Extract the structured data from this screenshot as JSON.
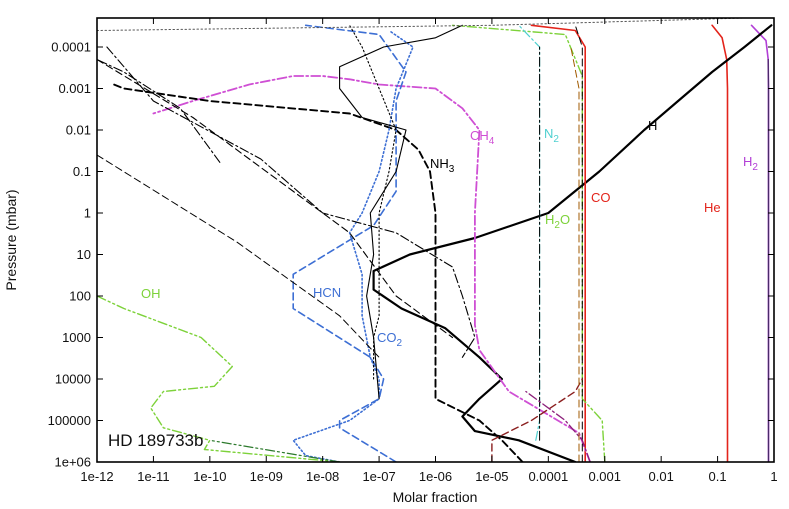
{
  "chart_data": {
    "type": "line",
    "xlabel": "Molar fraction",
    "ylabel": "Pressure (mbar)",
    "xscale": "log",
    "yscale": "log",
    "yinverted": true,
    "xlim": [
      1e-12,
      1
    ],
    "ylim": [
      1000000,
      2e-05
    ],
    "xtick_labels": [
      "1e-12",
      "1e-11",
      "1e-10",
      "1e-09",
      "1e-08",
      "1e-07",
      "1e-06",
      "1e-05",
      "0.0001",
      "0.001",
      "0.01",
      "0.1",
      "1"
    ],
    "ytick_labels": [
      "0.0001",
      "0.001",
      "0.01",
      "0.1",
      "1",
      "10",
      "100",
      "1000",
      "10000",
      "100000",
      "1e+06"
    ],
    "annotation": "HD 189733b",
    "series": [
      {
        "name": "H2",
        "color": "#b23fd6",
        "dash": "solid",
        "width": 1.6,
        "label_x": 0.82,
        "label_p": 0.15,
        "points": [
          [
            0.8,
            1000000
          ],
          [
            0.8,
            100
          ],
          [
            0.8,
            1
          ],
          [
            0.8,
            0.001
          ],
          [
            0.79,
            0.0002
          ],
          [
            0.72,
            7e-05
          ],
          [
            0.4,
            3e-05
          ]
        ]
      },
      {
        "name": "He",
        "color": "#e3241b",
        "dash": "solid",
        "width": 1.6,
        "label_x": 0.14,
        "label_p": 1.5,
        "points": [
          [
            0.15,
            1000000
          ],
          [
            0.15,
            100
          ],
          [
            0.15,
            1
          ],
          [
            0.15,
            0.001
          ],
          [
            0.145,
            0.0002
          ],
          [
            0.12,
            6e-05
          ],
          [
            0.08,
            3e-05
          ]
        ]
      },
      {
        "name": "H",
        "color": "#000000",
        "dash": "solid",
        "width": 2.2,
        "label_x": 0.007,
        "label_p": 0.008,
        "points": [
          [
            0.0003,
            1000000
          ],
          [
            3e-05,
            300000
          ],
          [
            5e-06,
            180000
          ],
          [
            3e-06,
            80000
          ],
          [
            6e-06,
            30000
          ],
          [
            1.5e-05,
            10000
          ],
          [
            6e-06,
            3000
          ],
          [
            1.5e-06,
            600
          ],
          [
            2.5e-07,
            200
          ],
          [
            8e-08,
            70
          ],
          [
            8e-08,
            25
          ],
          [
            3.5e-07,
            10
          ],
          [
            5e-06,
            4
          ],
          [
            0.0001,
            1
          ],
          [
            0.0008,
            0.1
          ],
          [
            0.005,
            0.01
          ],
          [
            0.02,
            0.002
          ],
          [
            0.08,
            0.0004
          ],
          [
            0.3,
            0.0001
          ],
          [
            0.9,
            3e-05
          ]
        ]
      },
      {
        "name": "CO",
        "color": "#e3241b",
        "dash": "solid",
        "width": 1.6,
        "label_x": 0.0006,
        "label_p": 0.9,
        "points": [
          [
            0.00045,
            1000000
          ],
          [
            0.00045,
            100
          ],
          [
            0.00045,
            1
          ],
          [
            0.00045,
            0.001
          ],
          [
            0.00045,
            0.0001
          ],
          [
            0.0003,
            4e-05
          ],
          [
            5e-05,
            3e-05
          ]
        ]
      },
      {
        "name": "H2O",
        "color": "#7dd23a",
        "dash": "dashdotdot",
        "width": 1.4,
        "label_x": 0.00015,
        "label_p": 3,
        "points": [
          [
            0.001,
            1000000
          ],
          [
            0.0009,
            100000
          ],
          [
            0.0004,
            30000
          ],
          [
            0.0004,
            10000
          ],
          [
            0.0004,
            100
          ],
          [
            0.0004,
            1
          ],
          [
            0.0004,
            0.0005
          ],
          [
            0.0002,
            5e-05
          ],
          [
            2e-06,
            3e-05
          ]
        ]
      },
      {
        "name": "N2",
        "color": "#4fd0d0",
        "dash": "dashdot",
        "width": 1.2,
        "label_x": 2.5e-05,
        "label_p": 0.02,
        "points": [
          [
            6e-05,
            300000
          ],
          [
            7e-05,
            100000
          ],
          [
            7e-05,
            1000
          ],
          [
            7e-05,
            10
          ],
          [
            7e-05,
            0.001
          ],
          [
            7e-05,
            0.0001
          ],
          [
            3e-05,
            3e-05
          ]
        ]
      },
      {
        "name": "CH4",
        "color": "#cf4fd4",
        "dash": "dashdot",
        "width": 1.8,
        "label_x": 4.5e-06,
        "label_p": 0.015,
        "points": [
          [
            0.00055,
            1000000
          ],
          [
            0.00035,
            200000
          ],
          [
            2e-05,
            20000
          ],
          [
            6e-06,
            2000
          ],
          [
            5e-06,
            500
          ],
          [
            5e-06,
            50
          ],
          [
            5e-06,
            1
          ],
          [
            6e-06,
            0.01
          ],
          [
            3e-06,
            0.003
          ],
          [
            1e-06,
            0.001
          ],
          [
            1e-07,
            0.0008
          ],
          [
            3e-08,
            0.0006
          ],
          [
            1e-08,
            0.0005
          ],
          [
            3e-09,
            0.0005
          ],
          [
            5e-10,
            0.0008
          ],
          [
            5e-11,
            0.002
          ],
          [
            1e-11,
            0.004
          ]
        ]
      },
      {
        "name": "NH3",
        "color": "#000000",
        "dash": "dash",
        "width": 1.9,
        "label_x": 8e-07,
        "label_p": 0.09,
        "points": [
          [
            3.5e-05,
            1000000
          ],
          [
            1.5e-05,
            300000
          ],
          [
            6e-06,
            100000
          ],
          [
            1e-06,
            30000
          ],
          [
            1e-06,
            10000
          ],
          [
            1e-06,
            100
          ],
          [
            1e-06,
            1
          ],
          [
            8e-07,
            0.1
          ],
          [
            5e-07,
            0.03
          ],
          [
            2e-07,
            0.01
          ],
          [
            3e-08,
            0.004
          ],
          [
            1e-10,
            0.002
          ],
          [
            3e-12,
            0.001
          ],
          [
            2e-12,
            0.0008
          ]
        ]
      },
      {
        "name": "HCN",
        "color": "#3d6fd4",
        "dash": "dash",
        "width": 1.6,
        "label_x": 3e-09,
        "label_p": 90,
        "points": [
          [
            2e-07,
            1000000
          ],
          [
            2e-08,
            150000
          ],
          [
            2e-08,
            100000
          ],
          [
            1e-07,
            30000
          ],
          [
            1.2e-07,
            10000
          ],
          [
            7e-08,
            3000
          ],
          [
            3e-09,
            200
          ],
          [
            3e-09,
            30
          ],
          [
            8e-08,
            2
          ],
          [
            2e-07,
            0.3
          ],
          [
            2e-07,
            0.02
          ],
          [
            2e-07,
            0.002
          ],
          [
            3e-07,
            0.0004
          ],
          [
            1e-07,
            5e-05
          ],
          [
            5e-09,
            3e-05
          ]
        ]
      },
      {
        "name": "CO2",
        "color": "#3d6fd4",
        "dash": "dot",
        "width": 1.6,
        "label_x": 5.5e-08,
        "label_p": 1000,
        "points": [
          [
            2e-08,
            1000000
          ],
          [
            5e-09,
            700000
          ],
          [
            3e-09,
            300000
          ],
          [
            3e-08,
            100000
          ],
          [
            1e-07,
            30000
          ],
          [
            1e-07,
            10000
          ],
          [
            7e-08,
            3000
          ],
          [
            5e-08,
            300
          ],
          [
            5e-08,
            30
          ],
          [
            3e-08,
            3
          ],
          [
            5e-08,
            1
          ],
          [
            1e-07,
            0.1
          ],
          [
            1.5e-07,
            0.01
          ],
          [
            2e-07,
            0.001
          ],
          [
            4e-07,
            0.0001
          ],
          [
            1.5e-07,
            4e-05
          ]
        ]
      },
      {
        "name": "OH",
        "color": "#7dd23a",
        "dash": "dashdotdot",
        "width": 1.4,
        "label_x": 3e-11,
        "label_p": 80,
        "points": [
          [
            2e-08,
            1000000
          ],
          [
            8e-11,
            500000
          ],
          [
            1e-10,
            300000
          ],
          [
            1.5e-11,
            150000
          ],
          [
            9e-12,
            50000
          ],
          [
            1.5e-11,
            20000
          ],
          [
            1.2e-10,
            15000
          ],
          [
            2.5e-10,
            5000
          ],
          [
            7e-11,
            1000
          ],
          [
            3e-12,
            200
          ],
          [
            1e-12,
            100
          ]
        ]
      },
      {
        "name": "",
        "color": "#000000",
        "dash": "solid",
        "width": 1.1,
        "points": [
          [
            1e-07,
            30000
          ],
          [
            8e-08,
            1000
          ],
          [
            6e-08,
            100
          ],
          [
            8e-08,
            10
          ],
          [
            7e-08,
            1
          ],
          [
            2e-07,
            0.1
          ],
          [
            3e-07,
            0.01
          ],
          [
            5e-08,
            0.005
          ],
          [
            2e-08,
            0.001
          ],
          [
            2e-08,
            0.0003
          ],
          [
            1.2e-07,
            0.0001
          ],
          [
            1e-06,
            6e-05
          ],
          [
            3e-06,
            3e-05
          ]
        ]
      },
      {
        "name": "",
        "color": "#000000",
        "dash": "dot",
        "width": 1.1,
        "points": [
          [
            8e-08,
            10000
          ],
          [
            8e-08,
            1000
          ],
          [
            1e-07,
            300
          ],
          [
            1e-07,
            30
          ],
          [
            1e-07,
            1
          ],
          [
            1.5e-07,
            0.1
          ],
          [
            2e-07,
            0.01
          ],
          [
            1e-07,
            0.001
          ],
          [
            5e-08,
            0.0001
          ],
          [
            3e-08,
            3e-05
          ]
        ]
      },
      {
        "name": "",
        "color": "#000000",
        "dash": "dashdot",
        "width": 1.1,
        "points": [
          [
            1.5e-10,
            0.06
          ],
          [
            3e-11,
            0.003
          ],
          [
            3e-12,
            0.0004
          ],
          [
            1e-12,
            0.0002
          ]
        ]
      },
      {
        "name": "",
        "color": "#000000",
        "dash": "dashdot",
        "width": 1.1,
        "points": [
          [
            1.5e-12,
            0.0001
          ],
          [
            1e-11,
            0.002
          ],
          [
            8e-10,
            0.05
          ],
          [
            1e-08,
            1
          ],
          [
            2e-07,
            3
          ],
          [
            2e-06,
            20
          ],
          [
            3e-06,
            100
          ],
          [
            5e-06,
            1000
          ],
          [
            3e-06,
            3000
          ]
        ]
      },
      {
        "name": "",
        "color": "#000000",
        "dash": "dash",
        "width": 1.1,
        "points": [
          [
            1e-12,
            0.0002
          ],
          [
            5e-11,
            0.005
          ],
          [
            5e-10,
            0.05
          ],
          [
            3e-08,
            3
          ],
          [
            2e-07,
            100
          ],
          [
            2e-06,
            1000
          ]
        ]
      },
      {
        "name": "",
        "color": "#000000",
        "dash": "dash",
        "width": 1.0,
        "points": [
          [
            1e-12,
            0.04
          ],
          [
            3e-10,
            5
          ],
          [
            2e-08,
            300
          ],
          [
            1e-07,
            3000
          ]
        ]
      },
      {
        "name": "",
        "color": "#000000",
        "dash": "dash",
        "width": 1.0,
        "points": [
          [
            0.0004,
            1000000
          ],
          [
            0.0004,
            1000
          ],
          [
            0.0004,
            1
          ],
          [
            0.0004,
            0.001
          ],
          [
            0.0004,
            0.0001
          ],
          [
            0.0003,
            3e-05
          ]
        ]
      },
      {
        "name": "",
        "color": "#000000",
        "dash": "dashdot",
        "width": 1.0,
        "points": [
          [
            7e-05,
            300000
          ],
          [
            7e-05,
            1000
          ],
          [
            7e-05,
            1
          ],
          [
            7e-05,
            0.001
          ],
          [
            7e-05,
            0.0001
          ]
        ]
      },
      {
        "name": "",
        "color": "#8b1f1f",
        "dash": "dash",
        "width": 1.4,
        "points": [
          [
            1e-05,
            1000000
          ],
          [
            1e-05,
            300000
          ],
          [
            5e-05,
            100000
          ],
          [
            0.0003,
            20000
          ],
          [
            0.0004,
            10000
          ]
        ]
      },
      {
        "name": "",
        "color": "#8b1f7a",
        "dash": "dashdot",
        "width": 1.3,
        "points": [
          [
            0.00055,
            1000000
          ],
          [
            0.0004,
            300000
          ],
          [
            0.0002,
            100000
          ],
          [
            4e-05,
            20000
          ]
        ]
      },
      {
        "name": "",
        "color": "#2d7a2d",
        "dash": "dashdotdot",
        "width": 1.2,
        "points": [
          [
            2e-08,
            1000000
          ],
          [
            1e-10,
            300000
          ]
        ]
      },
      {
        "name": "",
        "color": "#555555",
        "dash": "dot",
        "width": 1.0,
        "points": [
          [
            1e-12,
            4e-05
          ],
          [
            1e-05,
            3e-05
          ],
          [
            0.3,
            2e-05
          ]
        ]
      },
      {
        "name": "",
        "color": "#4a2a6a",
        "dash": "solid",
        "width": 1.3,
        "points": [
          [
            0.8,
            1000000
          ],
          [
            0.8,
            100
          ],
          [
            0.8,
            1
          ],
          [
            0.8,
            0.001
          ],
          [
            0.79,
            0.0002
          ]
        ]
      },
      {
        "name": "",
        "color": "#a05a00",
        "dash": "dash",
        "width": 1.0,
        "points": [
          [
            0.00035,
            1000000
          ],
          [
            0.00035,
            1
          ],
          [
            0.00035,
            0.001
          ],
          [
            0.00025,
            0.0001
          ]
        ]
      }
    ]
  },
  "labels": {
    "H2_main": "H",
    "H2_sub": "2",
    "He": "He",
    "H": "H",
    "CO": "CO",
    "H2O_a": "H",
    "H2O_sub": "2",
    "H2O_b": "O",
    "N2_main": "N",
    "N2_sub": "2",
    "CH4_main": "CH",
    "CH4_sub": "4",
    "NH3_main": "NH",
    "NH3_sub": "3",
    "HCN": "HCN",
    "CO2_main": "CO",
    "CO2_sub": "2",
    "OH": "OH"
  }
}
